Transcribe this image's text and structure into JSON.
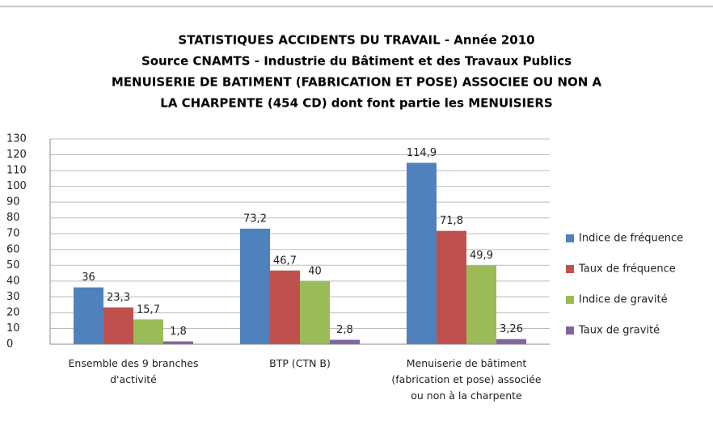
{
  "chart_data": {
    "type": "bar",
    "title": [
      "STATISTIQUES ACCIDENTS DU TRAVAIL - Année 2010",
      "Source CNAMTS - Industrie du Bâtiment et des Travaux Publics",
      "MENUISERIE DE BATIMENT (FABRICATION ET POSE) ASSOCIEE OU NON A",
      "LA CHARPENTE (454 CD) dont font partie les MENUISIERS"
    ],
    "categories": [
      "Ensemble des 9 branches d'activité",
      "BTP (CTN B)",
      "Menuiserie de bâtiment (fabrication et pose) associée ou non à la charpente"
    ],
    "series": [
      {
        "name": "Indice de fréquence",
        "color": "#4f81bd",
        "values": [
          36,
          73.2,
          114.9
        ],
        "value_labels": [
          "36",
          "73,2",
          "114,9"
        ]
      },
      {
        "name": "Taux de fréquence",
        "color": "#c0504d",
        "values": [
          23.3,
          46.7,
          71.8
        ],
        "value_labels": [
          "23,3",
          "46,7",
          "71,8"
        ]
      },
      {
        "name": "Indice de gravité",
        "color": "#9bbb59",
        "values": [
          15.7,
          40,
          49.9
        ],
        "value_labels": [
          "15,7",
          "40",
          "49,9"
        ]
      },
      {
        "name": "Taux de gravité",
        "color": "#8064a2",
        "values": [
          1.8,
          2.8,
          3.26
        ],
        "value_labels": [
          "1,8",
          "2,8",
          "3,26"
        ]
      }
    ],
    "ylim": [
      0,
      130
    ],
    "yticks": [
      0,
      10,
      20,
      30,
      40,
      50,
      60,
      70,
      80,
      90,
      100,
      110,
      120,
      130
    ],
    "grid": true,
    "legend": "right"
  }
}
